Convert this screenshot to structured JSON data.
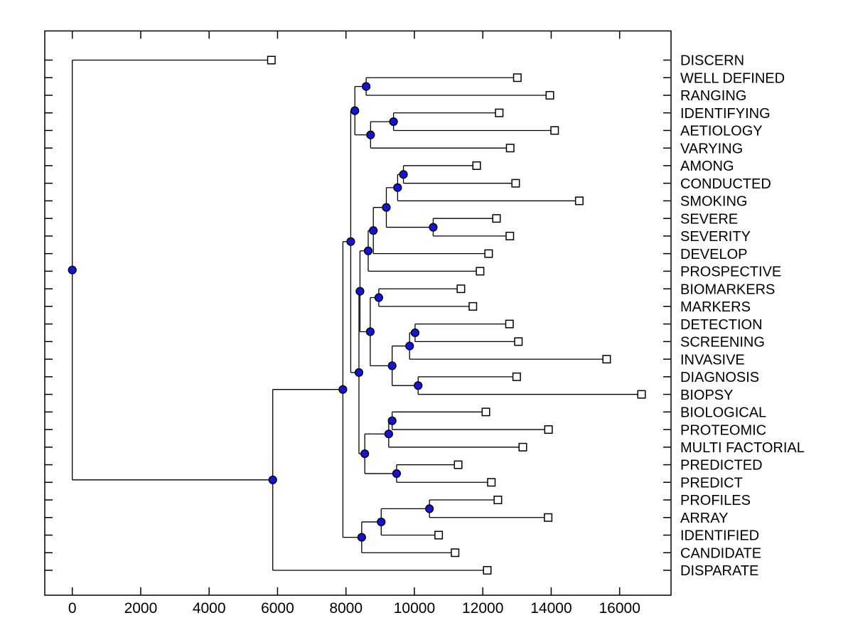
{
  "figure": {
    "background": "#ffffff",
    "axis_color": "#000000",
    "branch_color": "#000000",
    "internal_node_marker": {
      "shape": "circle",
      "fill": "#1414d6",
      "stroke": "#000000",
      "radius": 5.4
    },
    "leaf_marker": {
      "shape": "square",
      "fill": "#ffffff",
      "stroke": "#000000",
      "size": 10.5
    }
  },
  "chart_data": {
    "type": "tree",
    "subtype": "dendrogram-phylogram",
    "orientation": "root-left-leaves-right",
    "title": "",
    "xlabel": "",
    "ylabel": "",
    "grid": false,
    "legend": null,
    "x_axis": {
      "xlim": [
        -800,
        17500
      ],
      "ticks": [
        0,
        2000,
        4000,
        6000,
        8000,
        10000,
        12000,
        14000,
        16000
      ],
      "tick_labels": [
        "0",
        "2000",
        "4000",
        "6000",
        "8000",
        "10000",
        "12000",
        "14000",
        "16000"
      ]
    },
    "leaves": [
      {
        "label": "DISCERN",
        "tip_distance": 5820
      },
      {
        "label": "WELL DEFINED",
        "tip_distance": 13010
      },
      {
        "label": "RANGING",
        "tip_distance": 13960
      },
      {
        "label": "IDENTIFYING",
        "tip_distance": 12480
      },
      {
        "label": "AETIOLOGY",
        "tip_distance": 14100
      },
      {
        "label": "VARYING",
        "tip_distance": 12800
      },
      {
        "label": "AMONG",
        "tip_distance": 11820
      },
      {
        "label": "CONDUCTED",
        "tip_distance": 12960
      },
      {
        "label": "SMOKING",
        "tip_distance": 14820
      },
      {
        "label": "SEVERE",
        "tip_distance": 12400
      },
      {
        "label": "SEVERITY",
        "tip_distance": 12790
      },
      {
        "label": "DEVELOP",
        "tip_distance": 12170
      },
      {
        "label": "PROSPECTIVE",
        "tip_distance": 11920
      },
      {
        "label": "BIOMARKERS",
        "tip_distance": 11360
      },
      {
        "label": "MARKERS",
        "tip_distance": 11710
      },
      {
        "label": "DETECTION",
        "tip_distance": 12780
      },
      {
        "label": "SCREENING",
        "tip_distance": 13040
      },
      {
        "label": "INVASIVE",
        "tip_distance": 15620
      },
      {
        "label": "DIAGNOSIS",
        "tip_distance": 12990
      },
      {
        "label": "BIOPSY",
        "tip_distance": 16640
      },
      {
        "label": "BIOLOGICAL",
        "tip_distance": 12090
      },
      {
        "label": "PROTEOMIC",
        "tip_distance": 13920
      },
      {
        "label": "MULTI FACTORIAL",
        "tip_distance": 13170
      },
      {
        "label": "PREDICTED",
        "tip_distance": 11280
      },
      {
        "label": "PREDICT",
        "tip_distance": 12250
      },
      {
        "label": "PROFILES",
        "tip_distance": 12440
      },
      {
        "label": "ARRAY",
        "tip_distance": 13910
      },
      {
        "label": "IDENTIFIED",
        "tip_distance": 10710
      },
      {
        "label": "CANDIDATE",
        "tip_distance": 11190
      },
      {
        "label": "DISPARATE",
        "tip_distance": 12130
      }
    ],
    "tree": {
      "x": 0,
      "children": [
        {
          "leaf": "DISCERN",
          "x": 5820
        },
        {
          "x": 5860,
          "children": [
            {
              "x": 7910,
              "children": [
                {
                  "x": 8140,
                  "children": [
                    {
                      "x": 8260,
                      "children": [
                        {
                          "x": 8590,
                          "children": [
                            {
                              "leaf": "WELL DEFINED",
                              "x": 13010
                            },
                            {
                              "leaf": "RANGING",
                              "x": 13960
                            }
                          ]
                        },
                        {
                          "x": 8720,
                          "children": [
                            {
                              "x": 9390,
                              "children": [
                                {
                                  "leaf": "IDENTIFYING",
                                  "x": 12480
                                },
                                {
                                  "leaf": "AETIOLOGY",
                                  "x": 14100
                                }
                              ]
                            },
                            {
                              "leaf": "VARYING",
                              "x": 12800
                            }
                          ]
                        }
                      ]
                    },
                    {
                      "x": 8380,
                      "children": [
                        {
                          "x": 8410,
                          "children": [
                            {
                              "x": 8650,
                              "children": [
                                {
                                  "x": 8800,
                                  "children": [
                                    {
                                      "x": 9180,
                                      "children": [
                                        {
                                          "x": 9510,
                                          "children": [
                                            {
                                              "x": 9680,
                                              "children": [
                                                {
                                                  "leaf": "AMONG",
                                                  "x": 11820
                                                },
                                                {
                                                  "leaf": "CONDUCTED",
                                                  "x": 12960
                                                }
                                              ]
                                            },
                                            {
                                              "leaf": "SMOKING",
                                              "x": 14820
                                            }
                                          ]
                                        },
                                        {
                                          "x": 10550,
                                          "children": [
                                            {
                                              "leaf": "SEVERE",
                                              "x": 12400
                                            },
                                            {
                                              "leaf": "SEVERITY",
                                              "x": 12790
                                            }
                                          ]
                                        }
                                      ]
                                    },
                                    {
                                      "leaf": "DEVELOP",
                                      "x": 12170
                                    }
                                  ]
                                },
                                {
                                  "leaf": "PROSPECTIVE",
                                  "x": 11920
                                }
                              ]
                            },
                            {
                              "x": 8710,
                              "children": [
                                {
                                  "x": 8960,
                                  "children": [
                                    {
                                      "leaf": "BIOMARKERS",
                                      "x": 11360
                                    },
                                    {
                                      "leaf": "MARKERS",
                                      "x": 11710
                                    }
                                  ]
                                },
                                {
                                  "x": 9350,
                                  "children": [
                                    {
                                      "x": 9860,
                                      "children": [
                                        {
                                          "x": 10020,
                                          "children": [
                                            {
                                              "leaf": "DETECTION",
                                              "x": 12780
                                            },
                                            {
                                              "leaf": "SCREENING",
                                              "x": 13040
                                            }
                                          ]
                                        },
                                        {
                                          "leaf": "INVASIVE",
                                          "x": 15620
                                        }
                                      ]
                                    },
                                    {
                                      "x": 10110,
                                      "children": [
                                        {
                                          "leaf": "DIAGNOSIS",
                                          "x": 12990
                                        },
                                        {
                                          "leaf": "BIOPSY",
                                          "x": 16640
                                        }
                                      ]
                                    }
                                  ]
                                }
                              ]
                            }
                          ]
                        },
                        {
                          "x": 8550,
                          "children": [
                            {
                              "x": 9250,
                              "children": [
                                {
                                  "x": 9350,
                                  "children": [
                                    {
                                      "leaf": "BIOLOGICAL",
                                      "x": 12090
                                    },
                                    {
                                      "leaf": "PROTEOMIC",
                                      "x": 13920
                                    }
                                  ]
                                },
                                {
                                  "leaf": "MULTI FACTORIAL",
                                  "x": 13170
                                }
                              ]
                            },
                            {
                              "x": 9480,
                              "children": [
                                {
                                  "leaf": "PREDICTED",
                                  "x": 11280
                                },
                                {
                                  "leaf": "PREDICT",
                                  "x": 12250
                                }
                              ]
                            }
                          ]
                        }
                      ]
                    }
                  ]
                },
                {
                  "x": 8460,
                  "children": [
                    {
                      "x": 9030,
                      "children": [
                        {
                          "x": 10440,
                          "children": [
                            {
                              "leaf": "PROFILES",
                              "x": 12440
                            },
                            {
                              "leaf": "ARRAY",
                              "x": 13910
                            }
                          ]
                        },
                        {
                          "leaf": "IDENTIFIED",
                          "x": 10710
                        }
                      ]
                    },
                    {
                      "leaf": "CANDIDATE",
                      "x": 11190
                    }
                  ]
                }
              ]
            },
            {
              "leaf": "DISPARATE",
              "x": 12130
            }
          ]
        }
      ]
    }
  }
}
